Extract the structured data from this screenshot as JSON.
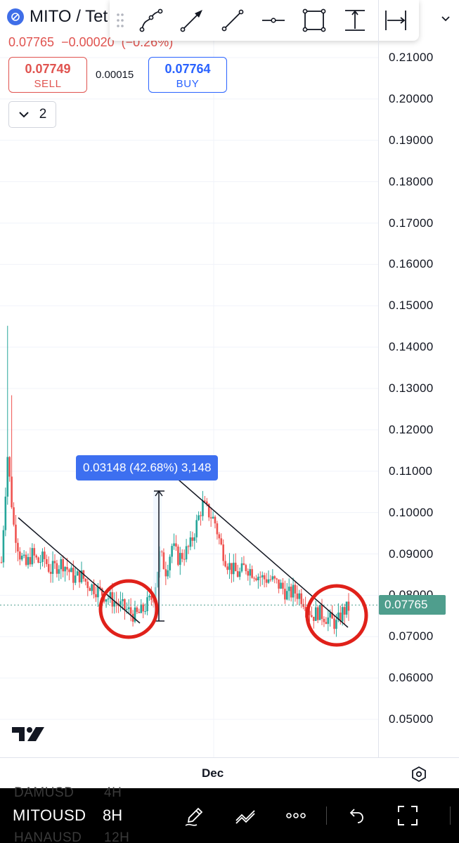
{
  "symbol": {
    "name": "MITO / Tet",
    "logo_color": "#3f6ee8"
  },
  "quote": {
    "last": "0.07765",
    "change": "−0.00020",
    "change_pct": "(−0.26%)"
  },
  "trade": {
    "sell_price": "0.07749",
    "sell_label": "SELL",
    "spread": "0.00015",
    "buy_price": "0.07764",
    "buy_label": "BUY"
  },
  "collapse": {
    "count": "2"
  },
  "toolbar": {
    "tools": [
      "path-icon",
      "arrow-icon",
      "trend-line-icon",
      "horizontal-ray-icon",
      "rectangle-icon",
      "price-range-icon",
      "date-range-icon"
    ]
  },
  "measure": {
    "text": "0.03148 (42.68%) 3,148"
  },
  "price_axis": {
    "labels": [
      "0.21000",
      "0.20000",
      "0.19000",
      "0.18000",
      "0.17000",
      "0.16000",
      "0.15000",
      "0.14000",
      "0.13000",
      "0.12000",
      "0.11000",
      "0.10000",
      "0.09000",
      "0.08000",
      "0.07000",
      "0.06000",
      "0.05000"
    ],
    "current": "0.07765"
  },
  "time_axis": {
    "label": "Dec"
  },
  "bottom": {
    "symbol_prev": "DAMUSD",
    "tf_prev": "4H",
    "symbol": "MITOUSD",
    "timeframe": "8H",
    "symbol_next": "HANAUSD",
    "tf_next": "12H"
  },
  "colors": {
    "up": "#26a69a",
    "down": "#ef5350",
    "circle": "#e0211a",
    "measure": "#3d6ff0"
  },
  "chart_data": {
    "type": "candlestick",
    "series_close": [
      0.088,
      0.114,
      0.097,
      0.09,
      0.087,
      0.09,
      0.088,
      0.089,
      0.086,
      0.087,
      0.088,
      0.086,
      0.084,
      0.085,
      0.083,
      0.082,
      0.081,
      0.08,
      0.079,
      0.078,
      0.077,
      0.076,
      0.075,
      0.076,
      0.078,
      0.08,
      0.09,
      0.086,
      0.092,
      0.089,
      0.09,
      0.092,
      0.097,
      0.102,
      0.1,
      0.098,
      0.092,
      0.088,
      0.086,
      0.085,
      0.087,
      0.086,
      0.085,
      0.084,
      0.084,
      0.083,
      0.082,
      0.08,
      0.081,
      0.08,
      0.078,
      0.075,
      0.076,
      0.075,
      0.074,
      0.073,
      0.076,
      0.077
    ],
    "current_price": 0.07765,
    "ylim": [
      0.044,
      0.214
    ],
    "x_tick": "Dec",
    "measure_range": {
      "from": 0.0737,
      "to": 0.1052,
      "text": "0.03148 (42.68%) 3,148"
    }
  }
}
